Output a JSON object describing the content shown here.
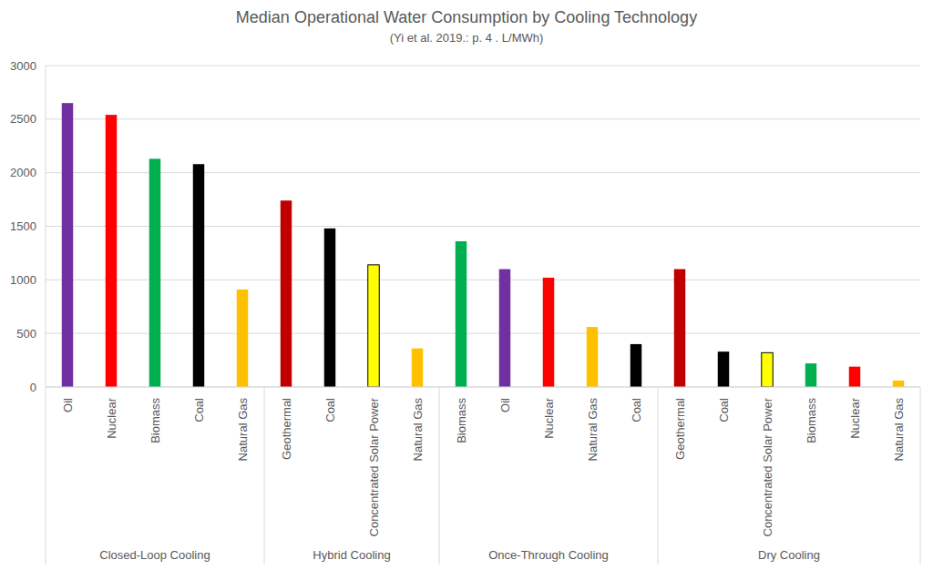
{
  "chart_data": {
    "type": "bar",
    "title": "Median Operational Water Consumption by Cooling Technology",
    "subtitle": "(Yi et al. 2019.: p. 4 .  L/MWh)",
    "categories": [
      "Oil",
      "Nuclear",
      "Biomass",
      "Coal",
      "Natural Gas",
      "Geothermal",
      "Coal",
      "Concentrated Solar Power",
      "Natural Gas",
      "Biomass",
      "Oil",
      "Nuclear",
      "Natural Gas",
      "Coal",
      "Geothermal",
      "Coal",
      "Concentrated Solar Power",
      "Biomass",
      "Nuclear",
      "Natural Gas"
    ],
    "values": [
      2650,
      2540,
      2130,
      2080,
      910,
      1740,
      1480,
      1140,
      360,
      1360,
      1100,
      1020,
      560,
      400,
      1100,
      330,
      320,
      220,
      190,
      60
    ],
    "colors": [
      "#7030a0",
      "#ff0000",
      "#00b050",
      "#000000",
      "#ffc000",
      "#c00000",
      "#000000",
      "#ffff00",
      "#ffc000",
      "#00b050",
      "#7030a0",
      "#ff0000",
      "#ffc000",
      "#000000",
      "#c00000",
      "#000000",
      "#ffff00",
      "#00b050",
      "#ff0000",
      "#ffc000"
    ],
    "groups": [
      {
        "label": "Closed-Loop Cooling",
        "size": 5
      },
      {
        "label": "Hybrid Cooling",
        "size": 4
      },
      {
        "label": "Once-Through Cooling",
        "size": 5
      },
      {
        "label": "Dry Cooling",
        "size": 6
      }
    ],
    "ylim": [
      0,
      3000
    ],
    "yticks": [
      0,
      500,
      1000,
      1500,
      2000,
      2500,
      3000
    ],
    "grid": true
  }
}
